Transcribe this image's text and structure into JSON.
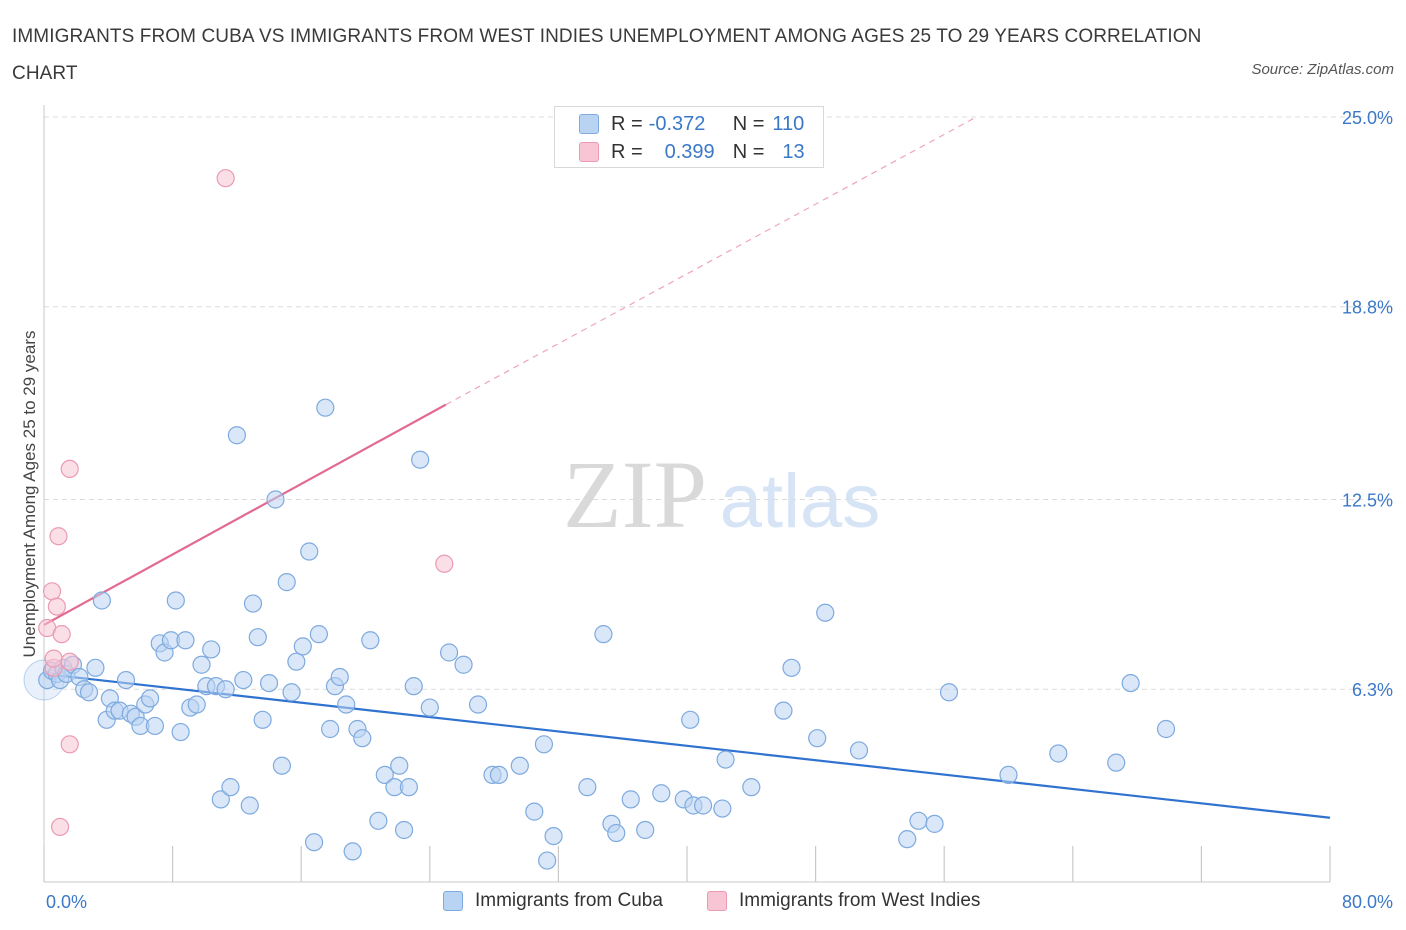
{
  "header": {
    "title": "IMMIGRANTS FROM CUBA VS IMMIGRANTS FROM WEST INDIES UNEMPLOYMENT AMONG AGES 25 TO 29 YEARS CORRELATION CHART",
    "source": "Source: ZipAtlas.com"
  },
  "watermark": {
    "zip": "ZIP",
    "atlas": "atlas"
  },
  "legend": {
    "rows": [
      {
        "r_label": "R =",
        "r_value": "-0.372",
        "n_label": "N =",
        "n_value": "110"
      },
      {
        "r_label": "R =",
        "r_value": "0.399",
        "n_label": "N =",
        "n_value": "13"
      }
    ]
  },
  "colors": {
    "cuba_fill": "#b9d3f3",
    "cuba_stroke": "#7eaadf",
    "cuba_line": "#2f72d0",
    "wi_fill": "#f7c5d4",
    "wi_stroke": "#eb9ab3",
    "wi_line": "#e2698f",
    "accent_text": "#3b78c8",
    "grid": "#dcdcdc"
  },
  "chart_data": {
    "type": "scatter",
    "title": "IMMIGRANTS FROM CUBA VS IMMIGRANTS FROM WEST INDIES UNEMPLOYMENT AMONG AGES 25 TO 29 YEARS CORRELATION CHART",
    "xlabel": "",
    "ylabel": "Unemployment Among Ages 25 to 29 years",
    "xlim": [
      0,
      80
    ],
    "ylim": [
      0,
      25
    ],
    "x_tick_labels": [
      "0.0%",
      "80.0%"
    ],
    "y_tick_labels": [
      "6.3%",
      "12.5%",
      "18.8%",
      "25.0%"
    ],
    "y_ticks": [
      6.3,
      12.5,
      18.8,
      25.0
    ],
    "grid": true,
    "legend_position": "top-center",
    "series": [
      {
        "name": "Immigrants from Cuba",
        "r": -0.372,
        "n": 110,
        "trend": {
          "x0": 0.0,
          "y0": 6.8,
          "x1": 80.0,
          "y1": 2.1
        },
        "points": [
          [
            0.2,
            6.6
          ],
          [
            0.5,
            6.9
          ],
          [
            0.8,
            6.8
          ],
          [
            1.0,
            6.6
          ],
          [
            1.2,
            7.0
          ],
          [
            1.4,
            6.8
          ],
          [
            1.8,
            7.1
          ],
          [
            2.2,
            6.7
          ],
          [
            2.5,
            6.3
          ],
          [
            2.8,
            6.2
          ],
          [
            3.2,
            7.0
          ],
          [
            3.6,
            9.2
          ],
          [
            3.9,
            5.3
          ],
          [
            4.1,
            6.0
          ],
          [
            4.4,
            5.6
          ],
          [
            4.7,
            5.6
          ],
          [
            5.1,
            6.6
          ],
          [
            5.4,
            5.5
          ],
          [
            5.7,
            5.4
          ],
          [
            6.0,
            5.1
          ],
          [
            6.3,
            5.8
          ],
          [
            6.6,
            6.0
          ],
          [
            6.9,
            5.1
          ],
          [
            7.2,
            7.8
          ],
          [
            7.5,
            7.5
          ],
          [
            7.9,
            7.9
          ],
          [
            8.2,
            9.2
          ],
          [
            8.5,
            4.9
          ],
          [
            8.8,
            7.9
          ],
          [
            9.1,
            5.7
          ],
          [
            9.5,
            5.8
          ],
          [
            9.8,
            7.1
          ],
          [
            10.1,
            6.4
          ],
          [
            10.4,
            7.6
          ],
          [
            10.7,
            6.4
          ],
          [
            11.0,
            2.7
          ],
          [
            11.3,
            6.3
          ],
          [
            11.6,
            3.1
          ],
          [
            12.0,
            14.6
          ],
          [
            12.4,
            6.6
          ],
          [
            12.8,
            2.5
          ],
          [
            13.0,
            9.1
          ],
          [
            13.3,
            8.0
          ],
          [
            13.6,
            5.3
          ],
          [
            14.0,
            6.5
          ],
          [
            14.4,
            12.5
          ],
          [
            14.8,
            3.8
          ],
          [
            15.1,
            9.8
          ],
          [
            15.4,
            6.2
          ],
          [
            15.7,
            7.2
          ],
          [
            16.1,
            7.7
          ],
          [
            16.5,
            10.8
          ],
          [
            16.8,
            1.3
          ],
          [
            17.1,
            8.1
          ],
          [
            17.5,
            15.5
          ],
          [
            17.8,
            5.0
          ],
          [
            18.1,
            6.4
          ],
          [
            18.4,
            6.7
          ],
          [
            18.8,
            5.8
          ],
          [
            19.2,
            1.0
          ],
          [
            19.5,
            5.0
          ],
          [
            19.8,
            4.7
          ],
          [
            20.3,
            7.9
          ],
          [
            20.8,
            2.0
          ],
          [
            21.2,
            3.5
          ],
          [
            21.8,
            3.1
          ],
          [
            22.1,
            3.8
          ],
          [
            22.4,
            1.7
          ],
          [
            22.7,
            3.1
          ],
          [
            23.0,
            6.4
          ],
          [
            23.4,
            13.8
          ],
          [
            24.0,
            5.7
          ],
          [
            25.2,
            7.5
          ],
          [
            26.1,
            7.1
          ],
          [
            27.0,
            5.8
          ],
          [
            27.9,
            3.5
          ],
          [
            28.3,
            3.5
          ],
          [
            29.6,
            3.8
          ],
          [
            30.5,
            2.3
          ],
          [
            31.1,
            4.5
          ],
          [
            31.3,
            0.7
          ],
          [
            31.7,
            1.5
          ],
          [
            33.8,
            3.1
          ],
          [
            34.8,
            8.1
          ],
          [
            35.3,
            1.9
          ],
          [
            35.6,
            1.6
          ],
          [
            36.5,
            2.7
          ],
          [
            37.4,
            1.7
          ],
          [
            38.4,
            2.9
          ],
          [
            39.8,
            2.7
          ],
          [
            40.2,
            5.3
          ],
          [
            40.4,
            2.5
          ],
          [
            41.0,
            2.5
          ],
          [
            42.2,
            2.4
          ],
          [
            42.4,
            4.0
          ],
          [
            44.0,
            3.1
          ],
          [
            46.0,
            5.6
          ],
          [
            46.5,
            7.0
          ],
          [
            48.1,
            4.7
          ],
          [
            48.6,
            8.8
          ],
          [
            50.7,
            4.3
          ],
          [
            53.7,
            1.4
          ],
          [
            54.4,
            2.0
          ],
          [
            55.4,
            1.9
          ],
          [
            56.3,
            6.2
          ],
          [
            60.0,
            3.5
          ],
          [
            63.1,
            4.2
          ],
          [
            66.7,
            3.9
          ],
          [
            67.6,
            6.5
          ],
          [
            69.8,
            5.0
          ]
        ]
      },
      {
        "name": "Immigrants from West Indies",
        "r": 0.399,
        "n": 13,
        "trend": {
          "x0": 0.0,
          "y0": 8.4,
          "x1": 25.0,
          "y1": 15.6,
          "ext_x1": 58.0,
          "ext_y1": 25.0
        },
        "points": [
          [
            0.2,
            8.3
          ],
          [
            0.5,
            9.5
          ],
          [
            0.6,
            7.0
          ],
          [
            0.6,
            7.3
          ],
          [
            0.8,
            9.0
          ],
          [
            0.9,
            11.3
          ],
          [
            1.0,
            1.8
          ],
          [
            1.1,
            8.1
          ],
          [
            1.6,
            7.2
          ],
          [
            1.6,
            13.5
          ],
          [
            1.6,
            4.5
          ],
          [
            11.3,
            23.0
          ],
          [
            24.9,
            10.4
          ]
        ]
      }
    ]
  }
}
